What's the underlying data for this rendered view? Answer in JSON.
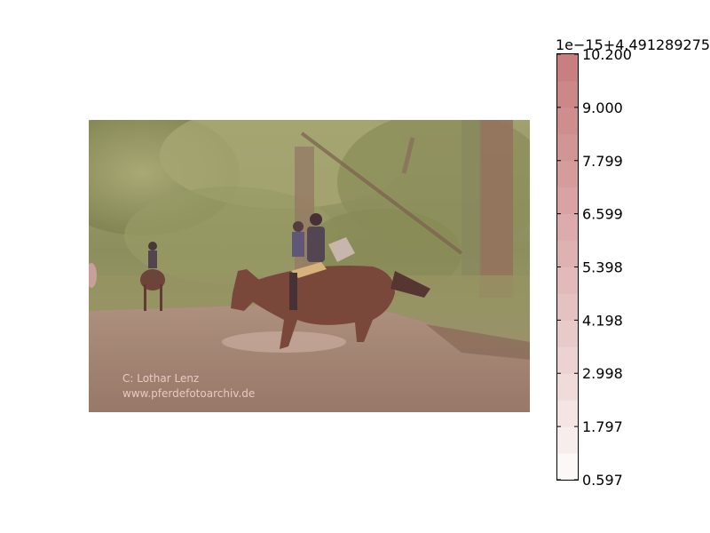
{
  "chart_data": {
    "type": "heatmap",
    "image": {
      "description": "horse-riding-photo",
      "watermark_line1": "C:    Lothar Lenz",
      "watermark_line2": "www.pferdefotoarchiv.de",
      "tint_color": "#c87c7c"
    },
    "colorbar": {
      "offset_label": "1e−15+4.491289275",
      "ticks": [
        10.2,
        9.0,
        7.799,
        6.599,
        5.398,
        4.198,
        2.998,
        1.797,
        0.597
      ],
      "tick_labels": [
        "10.200",
        "9.000",
        "7.799",
        "6.599",
        "5.398",
        "4.198",
        "2.998",
        "1.797",
        "0.597"
      ],
      "vmin": 0.597,
      "vmax": 10.2,
      "colormap": "white-to-red",
      "levels": 16,
      "low_color": "#ffffff",
      "high_color": "#c87c7c"
    }
  }
}
